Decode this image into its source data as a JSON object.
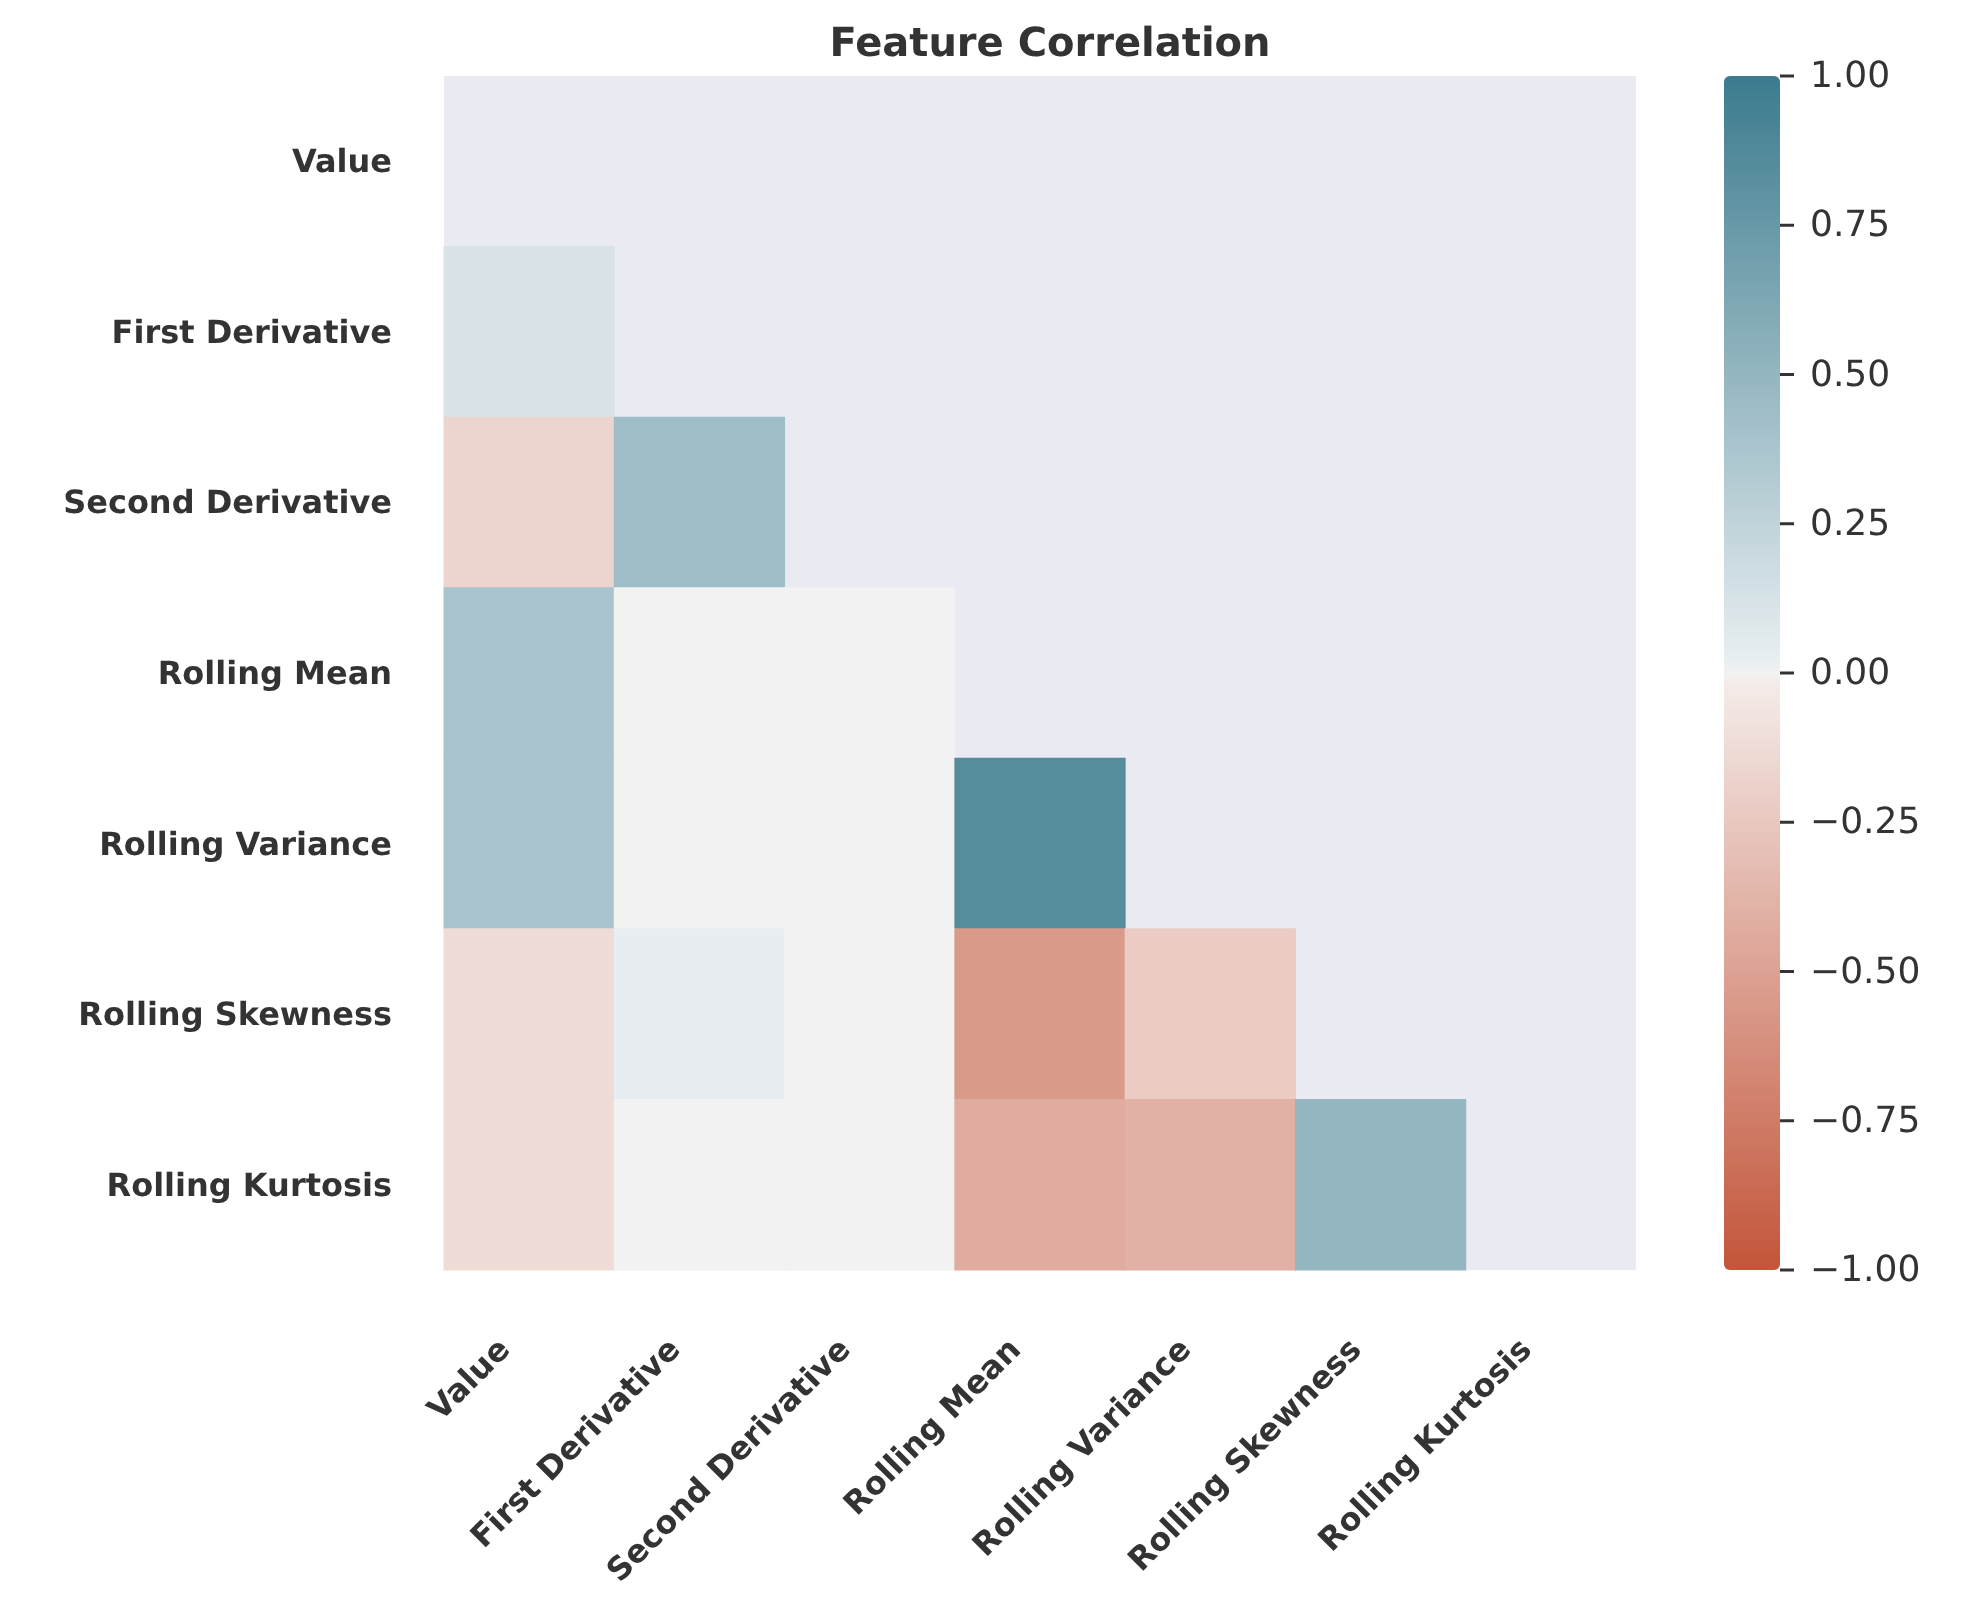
{
  "chart_data": {
    "type": "heatmap",
    "title": "Feature Correlation",
    "categories": [
      "Value",
      "First Derivative",
      "Second Derivative",
      "Rolling Mean",
      "Rolling Variance",
      "Rolling Skewness",
      "Rolling Kurtosis"
    ],
    "y_categories": [
      "Value",
      "First Derivative",
      "Second Derivative",
      "Rolling Mean",
      "Rolling Variance",
      "Rolling Skewness",
      "Rolling Kurtosis"
    ],
    "cells": [
      [
        null,
        null,
        null,
        null,
        null,
        null,
        null
      ],
      [
        0.12,
        null,
        null,
        null,
        null,
        null,
        null
      ],
      [
        -0.17,
        0.44,
        null,
        null,
        null,
        null,
        null
      ],
      [
        0.38,
        0,
        0,
        null,
        null,
        null,
        null
      ],
      [
        0.38,
        0,
        0,
        0.85,
        null,
        null,
        null
      ],
      [
        -0.12,
        0.03,
        0,
        -0.55,
        -0.22,
        null,
        null
      ],
      [
        -0.12,
        0,
        0,
        -0.43,
        -0.4,
        0.49,
        null
      ]
    ],
    "clim": [
      -1,
      1
    ],
    "cticks": [
      {
        "value": 1,
        "label": "1.00"
      },
      {
        "value": 0.75,
        "label": "0.75"
      },
      {
        "value": 0.5,
        "label": "0.50"
      },
      {
        "value": 0.25,
        "label": "0.25"
      },
      {
        "value": 0,
        "label": "0.00"
      },
      {
        "value": -0.25,
        "label": "−0.25"
      },
      {
        "value": -0.5,
        "label": "−0.50"
      },
      {
        "value": -0.75,
        "label": "−0.75"
      },
      {
        "value": -1,
        "label": "−1.00"
      }
    ]
  }
}
